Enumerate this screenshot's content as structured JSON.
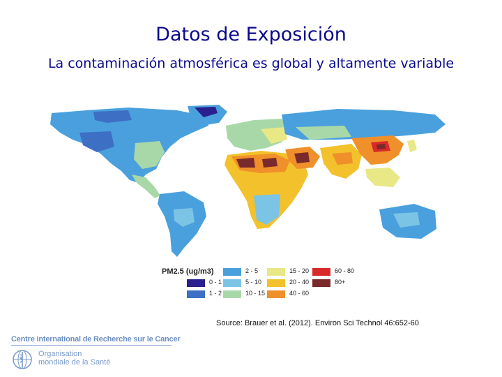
{
  "slide": {
    "title": "Datos de Exposición",
    "subtitle": "La contaminación atmosférica es global y altamente variable",
    "source": "Source: Brauer et al. (2012). Environ Sci Technol 46:652-60"
  },
  "legend": {
    "title": "PM2.5 (ug/m3)",
    "items": [
      {
        "label": "0 - 1",
        "color": "#2a1f8f"
      },
      {
        "label": "1 - 2",
        "color": "#3d6fc4"
      },
      {
        "label": "2 - 5",
        "color": "#4aa0dd"
      },
      {
        "label": "5 - 10",
        "color": "#7cc4e6"
      },
      {
        "label": "10 - 15",
        "color": "#a9d8a8"
      },
      {
        "label": "15 - 20",
        "color": "#e8e886"
      },
      {
        "label": "20 - 40",
        "color": "#f2c12c"
      },
      {
        "label": "40 - 60",
        "color": "#f0902a"
      },
      {
        "label": "60 - 80",
        "color": "#d82a2a"
      },
      {
        "label": "80+",
        "color": "#7a2a2a"
      }
    ]
  },
  "footer": {
    "iarc": "Centre international de Recherche sur le Cancer",
    "who_line1": "Organisation",
    "who_line2": "mondiale de la Santé"
  }
}
